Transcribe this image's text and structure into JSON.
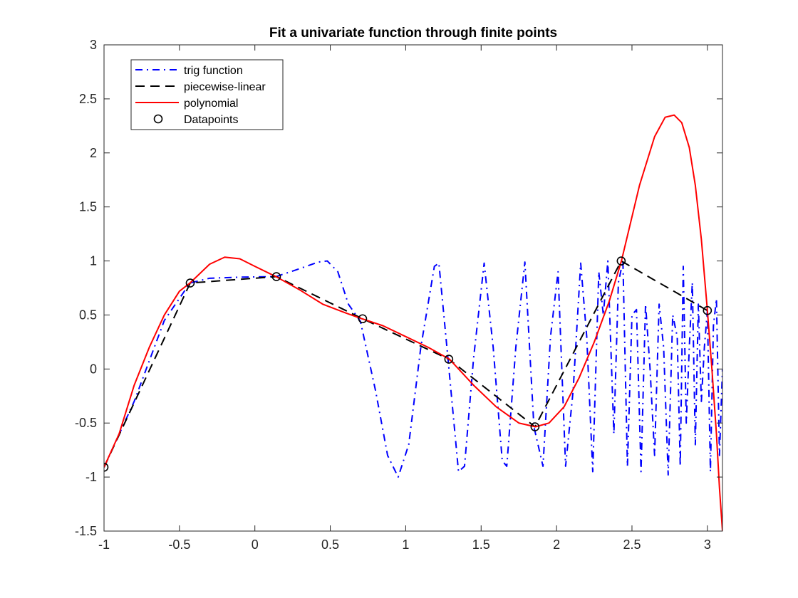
{
  "chart_data": {
    "type": "line",
    "title": "Fit a univariate function through finite points",
    "xlabel": "",
    "ylabel": "",
    "xlim": [
      -1,
      3.1
    ],
    "ylim": [
      -1.5,
      3
    ],
    "x_ticks": [
      -1,
      -0.5,
      0,
      0.5,
      1,
      1.5,
      2,
      2.5,
      3
    ],
    "x_tick_labels": [
      "-1",
      "-0.5",
      "0",
      "0.5",
      "1",
      "1.5",
      "2",
      "2.5",
      "3"
    ],
    "y_ticks": [
      -1.5,
      -1,
      -0.5,
      0,
      0.5,
      1,
      1.5,
      2,
      2.5,
      3
    ],
    "y_tick_labels": [
      "-1.5",
      "-1",
      "-0.5",
      "0",
      "0.5",
      "1",
      "1.5",
      "2",
      "2.5",
      "3"
    ],
    "grid": false,
    "legend_position": "top-left",
    "series": [
      {
        "name": "Datapoints",
        "style": "markers",
        "marker": "circle",
        "color": "#000000",
        "x": [
          -1.0,
          -0.4286,
          0.1429,
          0.7143,
          1.2857,
          1.8571,
          2.4286,
          3.0
        ],
        "y": [
          -0.909,
          0.796,
          0.855,
          0.465,
          0.091,
          -0.535,
          1.0,
          0.541
        ]
      },
      {
        "name": "trig function",
        "style": "dash-dot",
        "color": "#0000ff",
        "x": [
          -1.0,
          -0.8,
          -0.6,
          -0.43,
          -0.3,
          -0.1,
          0.14,
          0.3,
          0.42,
          0.48,
          0.55,
          0.62,
          0.7,
          0.8,
          0.88,
          0.95,
          1.02,
          1.1,
          1.19,
          1.22,
          1.28,
          1.35,
          1.39,
          1.45,
          1.52,
          1.58,
          1.64,
          1.67,
          1.73,
          1.79,
          1.85,
          1.91,
          1.96,
          2.01,
          2.06,
          2.11,
          2.16,
          2.2,
          2.24,
          2.28,
          2.31,
          2.34,
          2.38,
          2.41,
          2.44,
          2.47,
          2.5,
          2.53,
          2.56,
          2.59,
          2.62,
          2.65,
          2.68,
          2.71,
          2.74,
          2.77,
          2.8,
          2.82,
          2.84,
          2.86,
          2.88,
          2.9,
          2.92,
          2.94,
          2.96,
          2.98,
          3.0,
          3.02,
          3.04,
          3.06,
          3.08,
          3.1
        ],
        "y": [
          -0.909,
          -0.3,
          0.45,
          0.796,
          0.84,
          0.85,
          0.855,
          0.93,
          0.99,
          1.0,
          0.9,
          0.6,
          0.44,
          -0.2,
          -0.8,
          -1.0,
          -0.7,
          0.2,
          0.95,
          0.98,
          0.1,
          -0.95,
          -0.9,
          0.1,
          0.98,
          0.2,
          -0.85,
          -0.9,
          0.2,
          0.99,
          -0.535,
          -0.9,
          0.3,
          0.9,
          -0.9,
          -0.2,
          0.98,
          0.3,
          -0.95,
          0.9,
          0.5,
          1.0,
          -0.6,
          0.8,
          1.0,
          -0.9,
          0.5,
          0.55,
          -0.95,
          0.6,
          0.0,
          -0.8,
          0.6,
          0.2,
          -0.98,
          0.5,
          0.3,
          -0.9,
          0.95,
          -0.5,
          0.2,
          0.8,
          -0.7,
          0.6,
          -0.3,
          0.2,
          0.541,
          -0.95,
          0.4,
          0.65,
          -0.8,
          0.0
        ]
      },
      {
        "name": "piecewise-linear",
        "style": "dashed",
        "color": "#000000",
        "x": [
          -1.0,
          -0.4286,
          0.1429,
          0.7143,
          1.2857,
          1.8571,
          2.4286,
          3.0
        ],
        "y": [
          -0.909,
          0.796,
          0.855,
          0.465,
          0.091,
          -0.535,
          1.0,
          0.541
        ]
      },
      {
        "name": "polynomial",
        "style": "solid",
        "color": "#ff0000",
        "x": [
          -1.0,
          -0.9,
          -0.8,
          -0.7,
          -0.6,
          -0.5,
          -0.43,
          -0.3,
          -0.2,
          -0.1,
          0.0,
          0.14,
          0.3,
          0.45,
          0.6,
          0.71,
          0.85,
          1.0,
          1.15,
          1.29,
          1.45,
          1.6,
          1.75,
          1.86,
          1.95,
          2.05,
          2.15,
          2.25,
          2.35,
          2.43,
          2.55,
          2.65,
          2.72,
          2.78,
          2.83,
          2.88,
          2.92,
          2.96,
          3.0,
          3.03,
          3.06,
          3.08,
          3.1
        ],
        "y": [
          -0.909,
          -0.6,
          -0.15,
          0.2,
          0.5,
          0.72,
          0.796,
          0.97,
          1.035,
          1.02,
          0.95,
          0.855,
          0.73,
          0.6,
          0.52,
          0.465,
          0.4,
          0.3,
          0.2,
          0.091,
          -0.15,
          -0.35,
          -0.5,
          -0.535,
          -0.5,
          -0.35,
          -0.08,
          0.25,
          0.63,
          1.0,
          1.7,
          2.15,
          2.33,
          2.35,
          2.28,
          2.05,
          1.7,
          1.2,
          0.541,
          0.0,
          -0.6,
          -1.1,
          -1.5
        ]
      }
    ]
  }
}
